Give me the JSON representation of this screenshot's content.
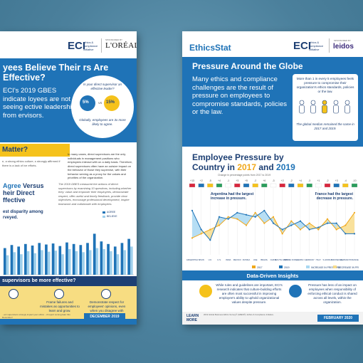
{
  "left_poster": {
    "logo_eci": "ECI",
    "logo_eci_sub": "ethics & compliance initiative",
    "sponsor_pre": "SPONSORED BY",
    "logo_sponsor": "L'ORÉAL",
    "title": "yees Believe Their rs Are Effective?",
    "lead": "ECI's 2019 GBES indicate loyees are not seeing ective leadership from ervisors.",
    "circle_question": "Is your direct supervisor an effective leader?",
    "yes_pct": "5%",
    "vs": "VS",
    "no_pct": "15%",
    "circle_note": "Globally, employees are 3x more likely to agree.",
    "banner": "Matter?",
    "small_left": "e, a strong ethics culture, s strongly affirmed if there is a lack of ive efforts.",
    "small_right": "In many cases, direct supervisors are the only individuals in management positions who employees interact with on a daily basis. Therefore, direct supervisors often have an outsize impact on the behavior of those they supervise, with their behavior serving as a proxy for the values and priorities of the organization.",
    "agree_a": "Agree",
    "agree_b": " Versus",
    "agree_c": "heir Direct",
    "agree_d": "ffective",
    "gbes": "The 2019 GBES measured the actions of direct supervisors by examining 10 questions, including whether they: value and empower their employees, demonstrate respect, offer useful and timely feedback, provide clear objectives, encourage professional development, inspire teamwork and collaborate with employees.",
    "disparity": "est disparity among rveyed.",
    "legend_agree": "AGREE",
    "legend_believe": "BELIEVE",
    "bottom_question": "supervisors be more effective?",
    "tips": [
      "",
      "Frame failures and mistakes as opportunities to learn and grow.",
      "Demonstrate respect for employees' opinions, even when you disagree with them."
    ],
    "footer_small": "...ect supervisors strongly impact your ethics ...ill report coming later this December!",
    "date": "DECEMBER 2019"
  },
  "right_poster": {
    "logo": "EthicsStat",
    "logo_eci": "ECI",
    "logo_eci_sub": "ethics & compliance initiative",
    "sponsor_pre": "SPONSORED BY",
    "logo_sponsor": "leidos",
    "title": "Pressure Around the Globe",
    "lead": "Many ethics and compliance challenges are the result of pressure on employees to compromise standards, policies or the law.",
    "callout": "More than 1 in every 5 employees feels pressure to compromise their organization's ethics standards, policies or the law.",
    "callout_note": "The global median remained the same in 2017 and 2019.",
    "chart_title_a": "Employee Pressure by Country in ",
    "chart_year_a": "2017",
    "chart_and": " and ",
    "chart_year_b": "2019",
    "note_increase": "Argentina had the largest increase in pressure.",
    "note_decrease": "France had the largest decrease in pressure.",
    "change_label": "Change in percentage points from 2017 to 2019",
    "insights_title": "Data-Driven Insights",
    "insight_left": "While rules and guidelines are important, ECI's research indicates that culture-building efforts are often most successful in improving employee's ability to uphold organizational values despite pressure.",
    "insight_right": "Pressure has less of an impact on employees when responsibility of enforcing ethical conduct is shared across all levels, within the organization.",
    "learn_more": "LEARN MORE",
    "footer_small": "2019 Global Business Ethics Survey® (GBES®). Ethics & Compliance Initiative.",
    "date": "FEBRUARY 2020"
  },
  "colors": {
    "primary_blue": "#1f73b7",
    "navy": "#1d3f73",
    "yellow": "#f5c21b",
    "light_blue": "#9fd0ec"
  },
  "chart_data": [
    {
      "type": "bar",
      "categories": [
        "",
        "",
        "",
        "",
        "",
        "",
        "",
        "",
        "",
        "",
        "",
        "",
        "",
        "",
        "",
        "",
        "",
        "",
        ""
      ],
      "series": [
        {
          "name": "AGREE",
          "values": [
            52,
            58,
            55,
            60,
            57,
            62,
            59,
            61,
            56,
            63,
            60,
            58,
            62,
            80,
            65,
            60,
            55,
            62,
            70
          ]
        },
        {
          "name": "BELIEVE",
          "values": [
            38,
            44,
            40,
            46,
            42,
            48,
            45,
            47,
            40,
            50,
            46,
            44,
            48,
            52,
            50,
            46,
            40,
            48,
            55
          ]
        }
      ],
      "xlabel": "",
      "ylabel": "",
      "ylim": [
        0,
        100
      ]
    },
    {
      "type": "line",
      "categories": [
        "ARGENTINA",
        "SPAIN",
        "U.K.",
        "U.S.",
        "INDIA",
        "MEXICO",
        "RUSSIA",
        "UAE",
        "BRAZIL",
        "CHINA",
        "SOUTH AFRICA",
        "SOUTH KOREA",
        "JAPAN",
        "GERMANY",
        "ITALY",
        "S.AFRICA",
        "INDONESIA",
        "GERMANY",
        "FRANCE"
      ],
      "change_labels": [
        "+13",
        "+2",
        "-5",
        "+4",
        "-1",
        "+3",
        "+5",
        "-2",
        "+6",
        "-3",
        "+2",
        "-2",
        "+4",
        "-3",
        "+1",
        "-2",
        "+3",
        "-4",
        "-10"
      ],
      "series": [
        {
          "name": "2017",
          "values": [
            18,
            20,
            22,
            24,
            28,
            27,
            24,
            30,
            25,
            28,
            20,
            26,
            22,
            25,
            22,
            27,
            22,
            24,
            30
          ]
        },
        {
          "name": "2019",
          "values": [
            31,
            22,
            17,
            28,
            27,
            30,
            29,
            28,
            31,
            25,
            22,
            24,
            26,
            22,
            23,
            25,
            25,
            20,
            20
          ]
        }
      ],
      "legend": [
        "2017",
        "2019",
        "INCREASE IN PRESSURE",
        "DECREASE IN PRESSURE"
      ],
      "ylim": [
        10,
        35
      ]
    }
  ]
}
